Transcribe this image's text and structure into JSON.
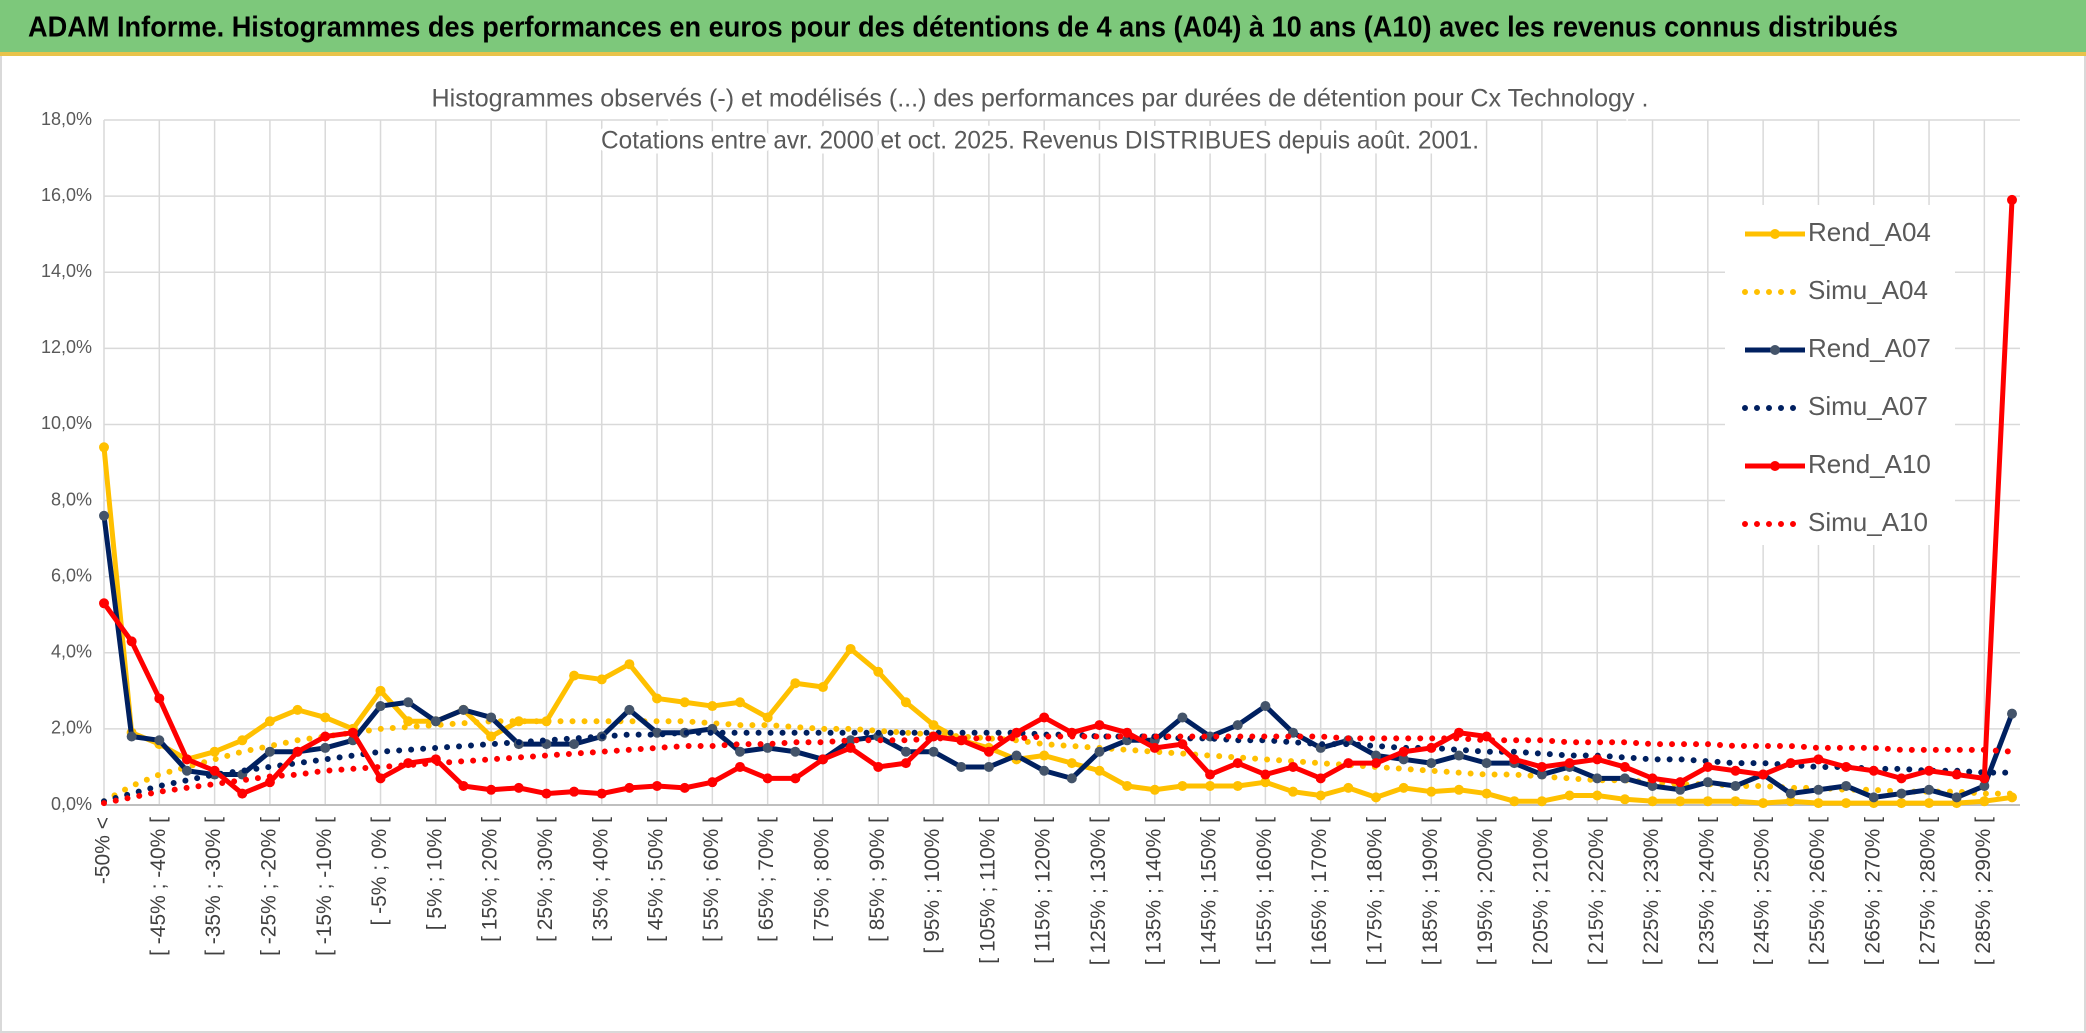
{
  "header": {
    "title": "ADAM Informe. Histogrammes des performances en euros pour des détentions de 4 ans (A04) à 10 ans (A10) avec les revenus connus distribués"
  },
  "chart_data": {
    "type": "line",
    "title": "Histogrammes observés (-) et modélisés (...) des performances par durées de détention pour Cx Technology .",
    "subtitle": "Cotations entre avr. 2000 et oct. 2025. Revenus DISTRIBUES depuis août. 2001.",
    "categories": [
      "-50% <",
      null,
      "[ -45% ; -40% [",
      null,
      "[ -35% ; -30% [",
      null,
      "[ -25% ; -20% [",
      null,
      "[ -15% ; -10% [",
      null,
      "[ -5% ; 0% [",
      null,
      "[ 5% ; 10% [",
      null,
      "[ 15% ; 20% [",
      null,
      "[ 25% ; 30% [",
      null,
      "[ 35% ; 40% [",
      null,
      "[ 45% ; 50% [",
      null,
      "[ 55% ; 60% [",
      null,
      "[ 65% ; 70% [",
      null,
      "[ 75% ; 80% [",
      null,
      "[ 85% ; 90% [",
      null,
      "[ 95% ; 100% [",
      null,
      "[ 105% ; 110% [",
      null,
      "[ 115% ; 120% [",
      null,
      "[ 125% ; 130% [",
      null,
      "[ 135% ; 140% [",
      null,
      "[ 145% ; 150% [",
      null,
      "[ 155% ; 160% [",
      null,
      "[ 165% ; 170% [",
      null,
      "[ 175% ; 180% [",
      null,
      "[ 185% ; 190% [",
      null,
      "[ 195% ; 200% [",
      null,
      "[ 205% ; 210% [",
      null,
      "[ 215% ; 220% [",
      null,
      "[ 225% ; 230% [",
      null,
      "[ 235% ; 240% [",
      null,
      "[ 245% ; 250% [",
      null,
      "[ 255% ; 260% [",
      null,
      "[ 265% ; 270% [",
      null,
      "[ 275% ; 280% [",
      null,
      "[ 285% ; 290% [",
      null
    ],
    "series": [
      {
        "name": "Rend_A04",
        "color": "#FFC000",
        "style": "solid",
        "markers": true,
        "marker_color": "#FFC000",
        "values": [
          9.4,
          1.9,
          1.6,
          1.2,
          1.4,
          1.7,
          2.2,
          2.5,
          2.3,
          2.0,
          3.0,
          2.2,
          2.2,
          2.5,
          1.8,
          2.2,
          2.2,
          3.4,
          3.3,
          3.7,
          2.8,
          2.7,
          2.6,
          2.7,
          2.3,
          3.2,
          3.1,
          4.1,
          3.5,
          2.7,
          2.1,
          1.7,
          1.5,
          1.2,
          1.3,
          1.1,
          0.9,
          0.5,
          0.4,
          0.5,
          0.5,
          0.5,
          0.6,
          0.35,
          0.25,
          0.45,
          0.2,
          0.45,
          0.35,
          0.4,
          0.3,
          0.1,
          0.1,
          0.25,
          0.25,
          0.15,
          0.1,
          0.1,
          0.1,
          0.1,
          0.05,
          0.1,
          0.05,
          0.05,
          0.05,
          0.05,
          0.05,
          0.05,
          0.1,
          0.2
        ]
      },
      {
        "name": "Simu_A04",
        "color": "#FFC000",
        "style": "dotted",
        "markers": false,
        "values": [
          0.1,
          0.5,
          0.8,
          1.0,
          1.2,
          1.4,
          1.55,
          1.7,
          1.8,
          1.9,
          2.0,
          2.05,
          2.1,
          2.15,
          2.2,
          2.2,
          2.2,
          2.2,
          2.2,
          2.2,
          2.2,
          2.2,
          2.15,
          2.1,
          2.1,
          2.05,
          2.0,
          2.0,
          1.95,
          1.9,
          1.85,
          1.8,
          1.75,
          1.7,
          1.6,
          1.55,
          1.5,
          1.45,
          1.4,
          1.35,
          1.3,
          1.25,
          1.2,
          1.15,
          1.1,
          1.05,
          1.0,
          0.95,
          0.9,
          0.85,
          0.8,
          0.8,
          0.75,
          0.7,
          0.65,
          0.65,
          0.6,
          0.55,
          0.55,
          0.5,
          0.5,
          0.45,
          0.45,
          0.4,
          0.4,
          0.35,
          0.35,
          0.35,
          0.3,
          0.3
        ]
      },
      {
        "name": "Rend_A07",
        "color": "#002060",
        "style": "solid",
        "markers": true,
        "marker_color": "#44546A",
        "values": [
          7.6,
          1.8,
          1.7,
          0.9,
          0.8,
          0.8,
          1.4,
          1.4,
          1.5,
          1.7,
          2.6,
          2.7,
          2.2,
          2.5,
          2.3,
          1.6,
          1.6,
          1.6,
          1.8,
          2.5,
          1.9,
          1.9,
          2.0,
          1.4,
          1.5,
          1.4,
          1.2,
          1.7,
          1.8,
          1.4,
          1.4,
          1.0,
          1.0,
          1.3,
          0.9,
          0.7,
          1.4,
          1.7,
          1.7,
          2.3,
          1.8,
          2.1,
          2.6,
          1.9,
          1.5,
          1.7,
          1.3,
          1.2,
          1.1,
          1.3,
          1.1,
          1.1,
          0.8,
          1.0,
          0.7,
          0.7,
          0.5,
          0.4,
          0.6,
          0.5,
          0.8,
          0.3,
          0.4,
          0.5,
          0.2,
          0.3,
          0.4,
          0.2,
          0.5,
          2.4
        ]
      },
      {
        "name": "Simu_A07",
        "color": "#002060",
        "style": "dotted",
        "markers": false,
        "values": [
          0.1,
          0.3,
          0.5,
          0.65,
          0.8,
          0.9,
          1.0,
          1.1,
          1.2,
          1.3,
          1.4,
          1.45,
          1.5,
          1.55,
          1.6,
          1.65,
          1.7,
          1.75,
          1.8,
          1.85,
          1.85,
          1.9,
          1.9,
          1.9,
          1.9,
          1.9,
          1.9,
          1.9,
          1.9,
          1.9,
          1.9,
          1.9,
          1.9,
          1.9,
          1.85,
          1.85,
          1.8,
          1.8,
          1.8,
          1.75,
          1.75,
          1.7,
          1.7,
          1.65,
          1.6,
          1.6,
          1.55,
          1.5,
          1.5,
          1.45,
          1.4,
          1.4,
          1.35,
          1.3,
          1.3,
          1.25,
          1.2,
          1.2,
          1.15,
          1.1,
          1.1,
          1.05,
          1.0,
          1.0,
          0.95,
          0.95,
          0.9,
          0.9,
          0.85,
          0.85
        ]
      },
      {
        "name": "Rend_A10",
        "color": "#FF0000",
        "style": "solid",
        "markers": true,
        "marker_color": "#FF0000",
        "values": [
          5.3,
          4.3,
          2.8,
          1.2,
          0.9,
          0.3,
          0.6,
          1.4,
          1.8,
          1.9,
          0.7,
          1.1,
          1.2,
          0.5,
          0.4,
          0.45,
          0.3,
          0.35,
          0.3,
          0.45,
          0.5,
          0.45,
          0.6,
          1.0,
          0.7,
          0.7,
          1.2,
          1.5,
          1.0,
          1.1,
          1.8,
          1.7,
          1.4,
          1.9,
          2.3,
          1.9,
          2.1,
          1.9,
          1.5,
          1.6,
          0.8,
          1.1,
          0.8,
          1.0,
          0.7,
          1.1,
          1.1,
          1.4,
          1.5,
          1.9,
          1.8,
          1.2,
          1.0,
          1.1,
          1.2,
          1.0,
          0.7,
          0.6,
          1.0,
          0.9,
          0.8,
          1.1,
          1.2,
          1.0,
          0.9,
          0.7,
          0.9,
          0.8,
          0.7,
          15.9
        ]
      },
      {
        "name": "Simu_A10",
        "color": "#FF0000",
        "style": "dotted",
        "markers": false,
        "values": [
          0.05,
          0.2,
          0.35,
          0.45,
          0.55,
          0.65,
          0.75,
          0.8,
          0.9,
          0.95,
          1.0,
          1.05,
          1.1,
          1.15,
          1.2,
          1.25,
          1.3,
          1.35,
          1.4,
          1.45,
          1.5,
          1.55,
          1.55,
          1.6,
          1.6,
          1.65,
          1.65,
          1.7,
          1.7,
          1.7,
          1.75,
          1.75,
          1.75,
          1.75,
          1.8,
          1.8,
          1.8,
          1.8,
          1.8,
          1.8,
          1.8,
          1.8,
          1.8,
          1.8,
          1.8,
          1.75,
          1.75,
          1.75,
          1.75,
          1.75,
          1.7,
          1.7,
          1.7,
          1.65,
          1.65,
          1.65,
          1.6,
          1.6,
          1.6,
          1.55,
          1.55,
          1.55,
          1.5,
          1.5,
          1.5,
          1.45,
          1.45,
          1.45,
          1.45,
          1.4
        ]
      }
    ],
    "ylim": [
      0,
      18
    ],
    "yticks": [
      {
        "value": 0,
        "label": "0,0%"
      },
      {
        "value": 2,
        "label": "2,0%"
      },
      {
        "value": 4,
        "label": "4,0%"
      },
      {
        "value": 6,
        "label": "6,0%"
      },
      {
        "value": 8,
        "label": "8,0%"
      },
      {
        "value": 10,
        "label": "10,0%"
      },
      {
        "value": 12,
        "label": "12,0%"
      },
      {
        "value": 14,
        "label": "14,0%"
      },
      {
        "value": 16,
        "label": "16,0%"
      },
      {
        "value": 18,
        "label": "18,0%"
      }
    ],
    "grid": true,
    "legend": "right"
  }
}
